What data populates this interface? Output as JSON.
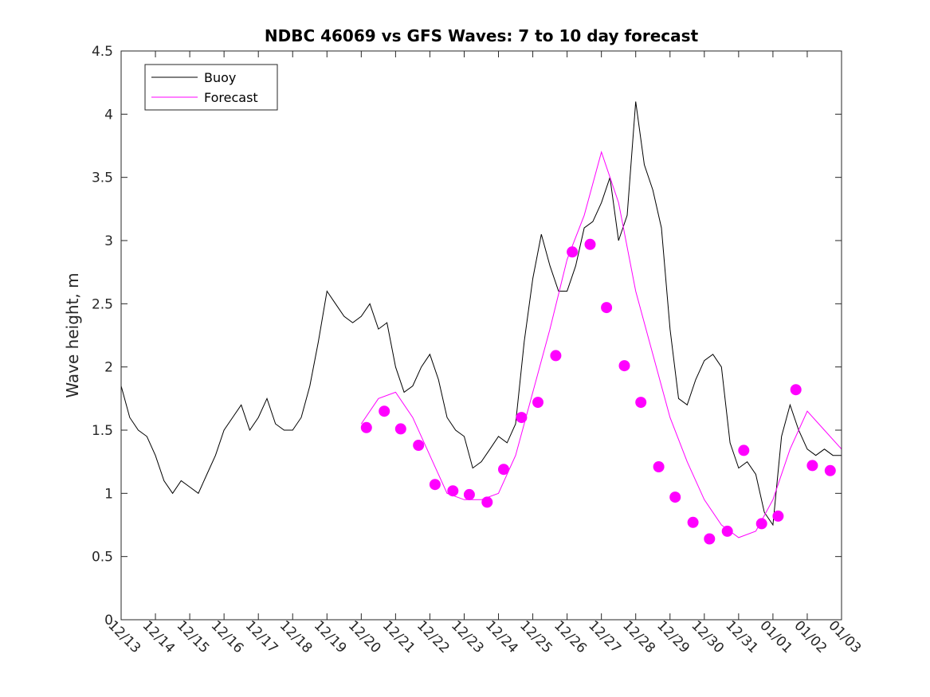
{
  "chart_data": {
    "type": "line",
    "title": "NDBC 46069 vs GFS Waves: 7 to 10 day forecast",
    "xlabel": "",
    "ylabel": "Wave height, m",
    "xlim": [
      0,
      21
    ],
    "ylim": [
      0,
      4.5
    ],
    "x_tick_labels": [
      "12/13",
      "12/14",
      "12/15",
      "12/16",
      "12/17",
      "12/18",
      "12/19",
      "12/20",
      "12/21",
      "12/22",
      "12/23",
      "12/24",
      "12/25",
      "12/26",
      "12/27",
      "12/28",
      "12/29",
      "12/30",
      "12/31",
      "01/01",
      "01/02",
      "01/03"
    ],
    "y_tick_labels": [
      "0",
      "0.5",
      "1",
      "1.5",
      "2",
      "2.5",
      "3",
      "3.5",
      "4",
      "4.5"
    ],
    "y_tick_values": [
      0,
      0.5,
      1,
      1.5,
      2,
      2.5,
      3,
      3.5,
      4,
      4.5
    ],
    "legend": [
      {
        "label": "Buoy",
        "color": "#000000"
      },
      {
        "label": "Forecast",
        "color": "#ff00ff"
      }
    ],
    "legend_position": "top-left",
    "series": [
      {
        "name": "Buoy",
        "color": "#000000",
        "x": [
          0,
          0.25,
          0.5,
          0.75,
          1.0,
          1.25,
          1.5,
          1.75,
          2.0,
          2.25,
          2.5,
          2.75,
          3.0,
          3.25,
          3.5,
          3.75,
          4.0,
          4.25,
          4.5,
          4.75,
          5.0,
          5.25,
          5.5,
          5.75,
          6.0,
          6.25,
          6.5,
          6.75,
          7.0,
          7.25,
          7.5,
          7.75,
          8.0,
          8.25,
          8.5,
          8.75,
          9.0,
          9.25,
          9.5,
          9.75,
          10.0,
          10.25,
          10.5,
          10.75,
          11.0,
          11.25,
          11.5,
          11.75,
          12.0,
          12.25,
          12.5,
          12.75,
          13.0,
          13.25,
          13.5,
          13.75,
          14.0,
          14.25,
          14.5,
          14.75,
          15.0,
          15.25,
          15.5,
          15.75,
          16.0,
          16.25,
          16.5,
          16.75,
          17.0,
          17.25,
          17.5,
          17.75,
          18.0,
          18.25,
          18.5,
          18.75,
          19.0,
          19.25,
          19.5,
          19.75,
          20.0,
          20.25,
          20.5,
          20.75,
          21.0
        ],
        "values": [
          1.85,
          1.6,
          1.5,
          1.45,
          1.3,
          1.1,
          1.0,
          1.1,
          1.05,
          1.0,
          1.15,
          1.3,
          1.5,
          1.6,
          1.7,
          1.5,
          1.6,
          1.75,
          1.55,
          1.5,
          1.5,
          1.6,
          1.85,
          2.2,
          2.6,
          2.5,
          2.4,
          2.35,
          2.4,
          2.5,
          2.3,
          2.35,
          2.0,
          1.8,
          1.85,
          2.0,
          2.1,
          1.9,
          1.6,
          1.5,
          1.45,
          1.2,
          1.25,
          1.35,
          1.45,
          1.4,
          1.55,
          2.2,
          2.7,
          3.05,
          2.8,
          2.6,
          2.6,
          2.8,
          3.1,
          3.15,
          3.3,
          3.5,
          3.0,
          3.2,
          4.1,
          3.6,
          3.4,
          3.1,
          2.3,
          1.75,
          1.7,
          1.9,
          2.05,
          2.1,
          2.0,
          1.4,
          1.2,
          1.25,
          1.15,
          0.85,
          0.75,
          1.45,
          1.7,
          1.5,
          1.35,
          1.3,
          1.35,
          1.3,
          1.3
        ]
      },
      {
        "name": "Forecast",
        "color": "#ff00ff",
        "x": [
          7.0,
          7.5,
          8.0,
          8.5,
          9.0,
          9.5,
          10.0,
          10.5,
          11.0,
          11.5,
          12.0,
          12.5,
          13.0,
          13.5,
          14.0,
          14.5,
          15.0,
          15.5,
          16.0,
          16.5,
          17.0,
          17.5,
          18.0,
          18.5,
          19.0,
          19.5,
          20.0,
          20.5,
          21.0
        ],
        "values": [
          1.55,
          1.75,
          1.8,
          1.6,
          1.3,
          1.0,
          0.95,
          0.95,
          1.0,
          1.3,
          1.8,
          2.3,
          2.85,
          3.2,
          3.7,
          3.3,
          2.6,
          2.1,
          1.6,
          1.25,
          0.95,
          0.75,
          0.65,
          0.7,
          0.95,
          1.35,
          1.65,
          1.5,
          1.35
        ]
      }
    ],
    "markers": {
      "name": "Forecast points",
      "color": "#ff00ff",
      "x": [
        7.15,
        7.67,
        8.15,
        8.67,
        9.15,
        9.67,
        10.15,
        10.67,
        11.15,
        11.67,
        12.15,
        12.67,
        13.15,
        13.67,
        14.15,
        14.67,
        15.15,
        15.67,
        16.15,
        16.67,
        17.15,
        17.67,
        18.15,
        18.67,
        19.15,
        19.67,
        20.15,
        20.67
      ],
      "values": [
        1.52,
        1.65,
        1.51,
        1.38,
        1.07,
        1.02,
        0.99,
        0.93,
        1.19,
        1.6,
        1.72,
        2.09,
        2.91,
        2.97,
        2.47,
        2.01,
        1.72,
        1.21,
        0.97,
        0.77,
        0.64,
        0.7,
        1.34,
        0.76,
        0.82,
        1.82,
        1.22,
        1.18
      ]
    }
  }
}
